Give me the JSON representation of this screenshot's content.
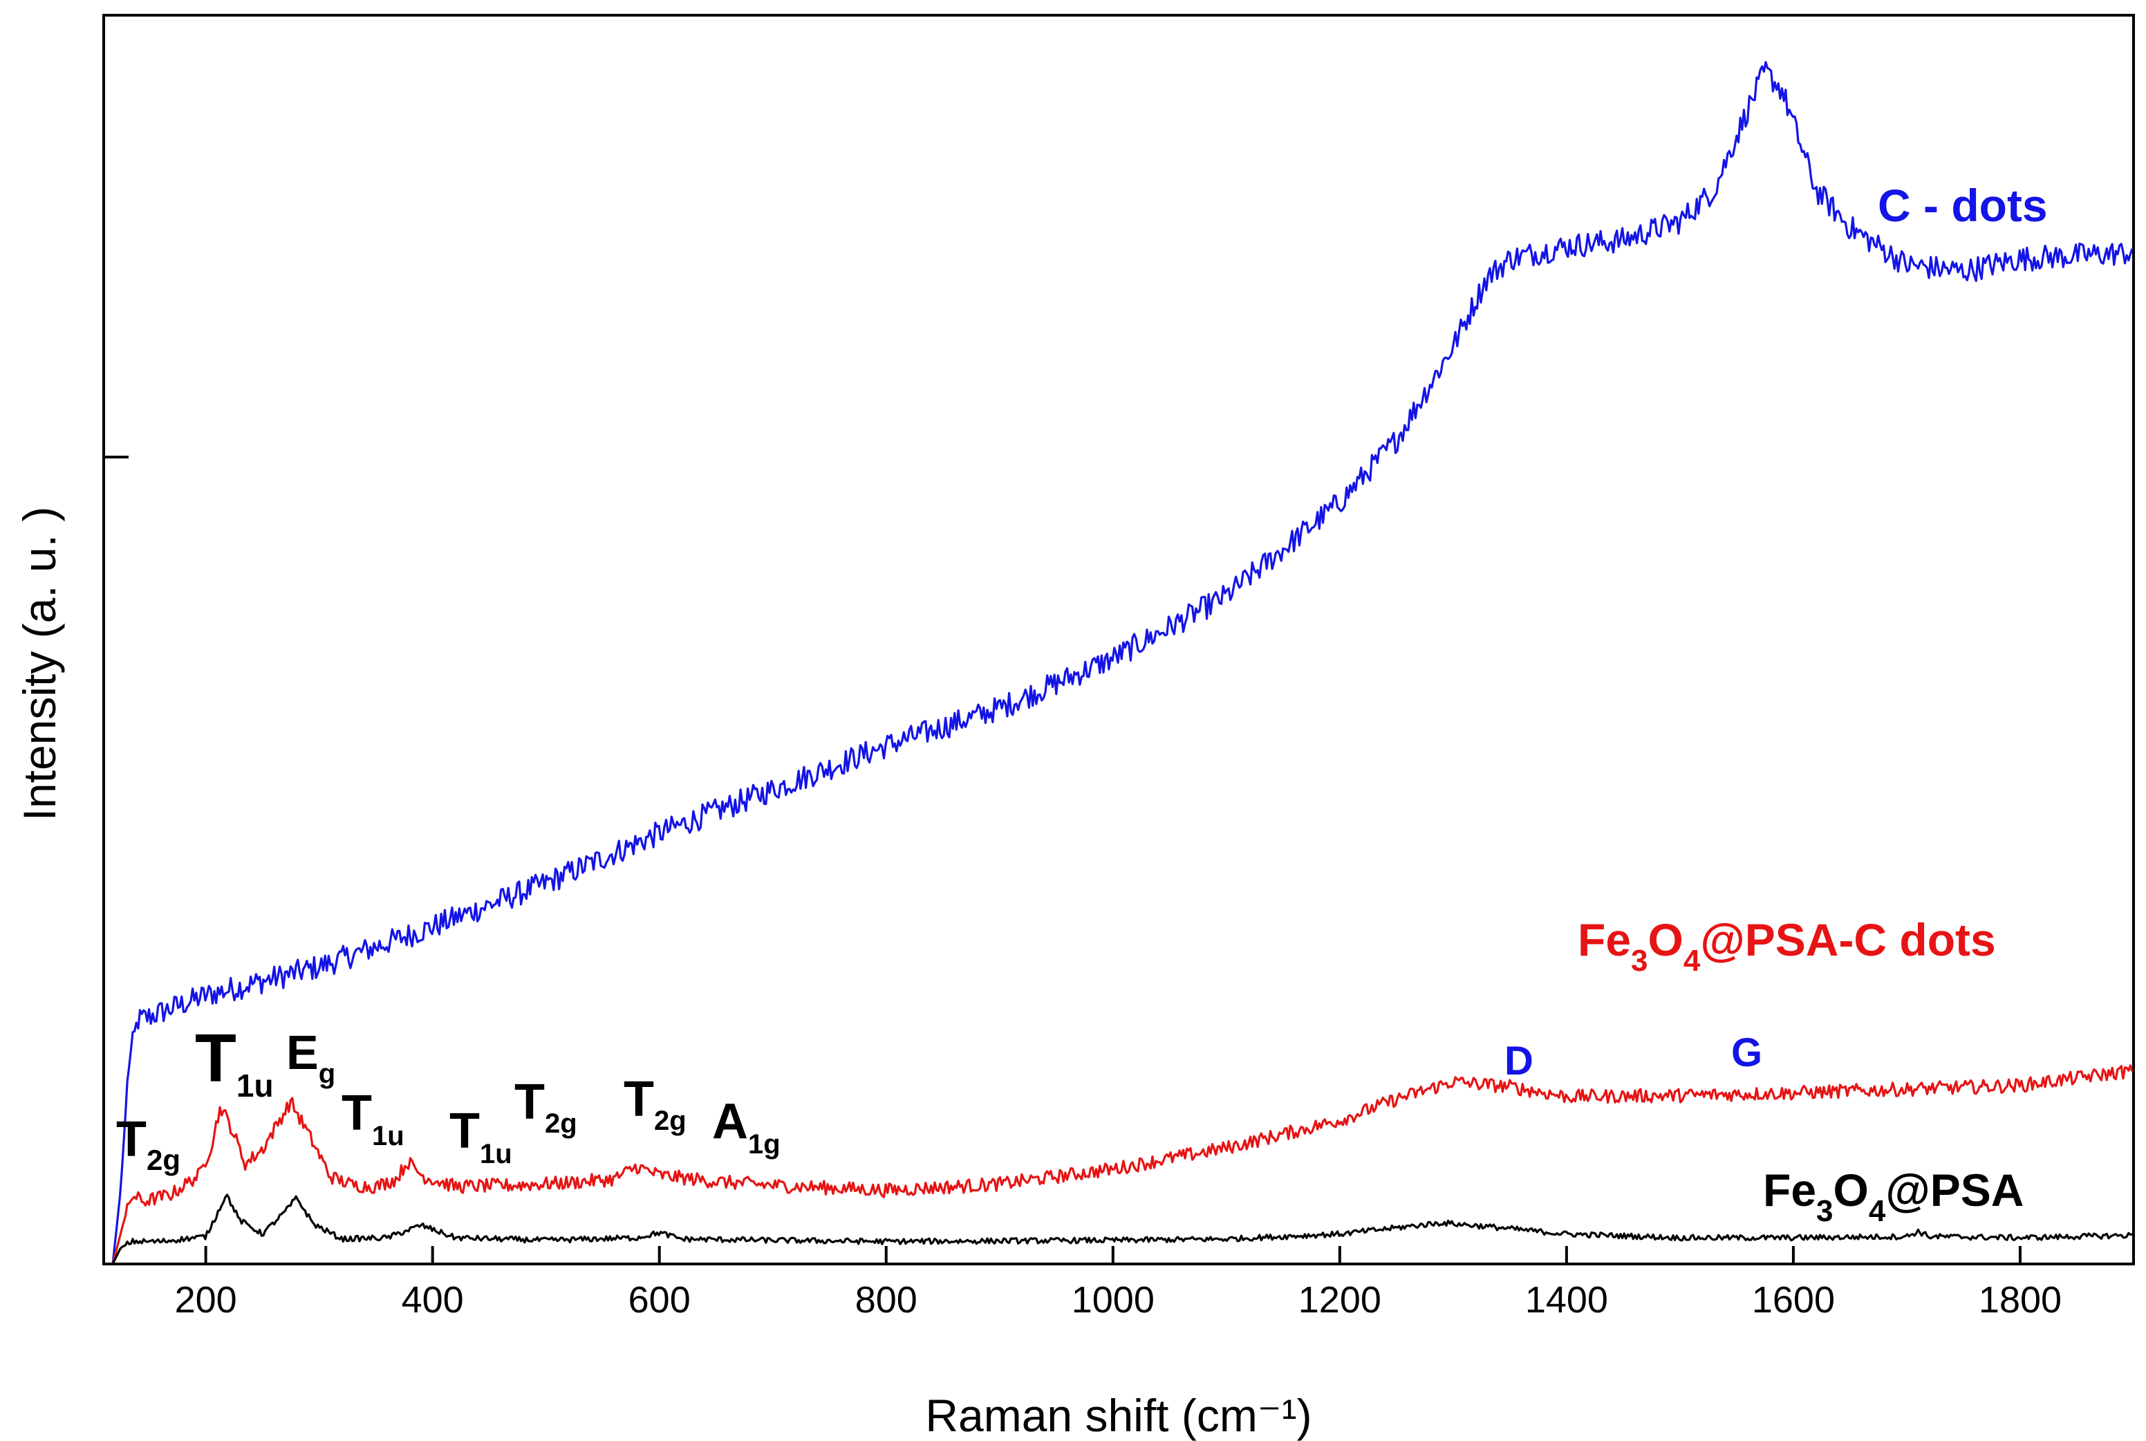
{
  "chart_data": {
    "type": "line",
    "title": "",
    "xlabel": "Raman shift (cm⁻¹)",
    "ylabel": "Intensity (a. u. )",
    "xlim": [
      110,
      1900
    ],
    "ylim": [
      0,
      100
    ],
    "x_ticks": [
      200,
      400,
      600,
      800,
      1000,
      1200,
      1400,
      1600,
      1800
    ],
    "x_tick_labels": [
      "200",
      "400",
      "600",
      "800",
      "1000",
      "1200",
      "1400",
      "1600",
      "1800"
    ],
    "grid": false,
    "series": [
      {
        "name": "C - dots",
        "color": "#1414e6",
        "points": [
          [
            118,
            0
          ],
          [
            125,
            6
          ],
          [
            132,
            16
          ],
          [
            140,
            19.5
          ],
          [
            150,
            19.8
          ],
          [
            200,
            21.5
          ],
          [
            300,
            23.8
          ],
          [
            400,
            27
          ],
          [
            500,
            30.5
          ],
          [
            600,
            34.5
          ],
          [
            700,
            38
          ],
          [
            800,
            41.5
          ],
          [
            900,
            44.5
          ],
          [
            1000,
            48.5
          ],
          [
            1100,
            53.5
          ],
          [
            1200,
            61
          ],
          [
            1250,
            66
          ],
          [
            1300,
            73.5
          ],
          [
            1330,
            79
          ],
          [
            1350,
            80.5
          ],
          [
            1400,
            81.5
          ],
          [
            1450,
            82
          ],
          [
            1500,
            83.5
          ],
          [
            1530,
            86
          ],
          [
            1560,
            92.5
          ],
          [
            1575,
            95.5
          ],
          [
            1590,
            94
          ],
          [
            1620,
            86
          ],
          [
            1650,
            83
          ],
          [
            1700,
            80
          ],
          [
            1750,
            79.5
          ],
          [
            1800,
            80.5
          ],
          [
            1900,
            81
          ]
        ],
        "noise": 1.0
      },
      {
        "name": "Fe3O4@PSA-C dots",
        "color": "#e61414",
        "points": [
          [
            118,
            0
          ],
          [
            128,
            3.5
          ],
          [
            135,
            5.5
          ],
          [
            145,
            5
          ],
          [
            170,
            5.6
          ],
          [
            195,
            7.2
          ],
          [
            205,
            9.5
          ],
          [
            213,
            12.6
          ],
          [
            222,
            11
          ],
          [
            235,
            8
          ],
          [
            250,
            9.2
          ],
          [
            265,
            11.5
          ],
          [
            275,
            13
          ],
          [
            290,
            10.5
          ],
          [
            310,
            7
          ],
          [
            330,
            6.3
          ],
          [
            350,
            6.2
          ],
          [
            368,
            6.8
          ],
          [
            378,
            8.2
          ],
          [
            392,
            7
          ],
          [
            420,
            6.2
          ],
          [
            470,
            6.3
          ],
          [
            520,
            6.5
          ],
          [
            560,
            6.8
          ],
          [
            580,
            7.8
          ],
          [
            600,
            7.1
          ],
          [
            650,
            6.6
          ],
          [
            700,
            6.3
          ],
          [
            800,
            5.9
          ],
          [
            900,
            6.4
          ],
          [
            1000,
            7.6
          ],
          [
            1100,
            9.3
          ],
          [
            1200,
            11.5
          ],
          [
            1250,
            13.2
          ],
          [
            1300,
            14.6
          ],
          [
            1350,
            14.2
          ],
          [
            1400,
            13.4
          ],
          [
            1500,
            13.5
          ],
          [
            1600,
            13.7
          ],
          [
            1700,
            14
          ],
          [
            1800,
            14.3
          ],
          [
            1900,
            15.5
          ]
        ],
        "noise": 0.55
      },
      {
        "name": "Fe3O4@PSA",
        "color": "#000000",
        "points": [
          [
            118,
            0
          ],
          [
            125,
            1.3
          ],
          [
            135,
            1.8
          ],
          [
            160,
            1.8
          ],
          [
            200,
            2.2
          ],
          [
            210,
            4
          ],
          [
            218,
            5.6
          ],
          [
            230,
            3.5
          ],
          [
            250,
            2.4
          ],
          [
            270,
            4.2
          ],
          [
            280,
            5.3
          ],
          [
            295,
            3.2
          ],
          [
            320,
            2
          ],
          [
            360,
            2.1
          ],
          [
            390,
            3.1
          ],
          [
            420,
            2.1
          ],
          [
            500,
            1.9
          ],
          [
            580,
            2.1
          ],
          [
            600,
            2.5
          ],
          [
            620,
            2
          ],
          [
            700,
            1.9
          ],
          [
            800,
            1.8
          ],
          [
            1000,
            1.9
          ],
          [
            1100,
            2
          ],
          [
            1200,
            2.4
          ],
          [
            1250,
            2.9
          ],
          [
            1290,
            3.3
          ],
          [
            1330,
            3
          ],
          [
            1400,
            2.4
          ],
          [
            1500,
            2.1
          ],
          [
            1600,
            2.1
          ],
          [
            1700,
            2.2
          ],
          [
            1710,
            2.6
          ],
          [
            1720,
            2.2
          ],
          [
            1800,
            2.1
          ],
          [
            1900,
            2.3
          ]
        ],
        "noise": 0.22
      }
    ],
    "series_labels": [
      {
        "text": "C - dots",
        "color": "#1414e6"
      },
      {
        "main": "Fe",
        "sub1": "3",
        "mid": "O",
        "sub2": "4",
        "tail": "@PSA-C dots",
        "color": "#e61414"
      },
      {
        "main": "Fe",
        "sub1": "3",
        "mid": "O",
        "sub2": "4",
        "tail": "@PSA",
        "color": "#000000"
      }
    ],
    "annotations": [
      {
        "main": "T",
        "sub": "2g"
      },
      {
        "main": "T",
        "sub": "1u"
      },
      {
        "main": "E",
        "sub": "g"
      },
      {
        "main": "T",
        "sub": "1u"
      },
      {
        "main": "T",
        "sub": "1u"
      },
      {
        "main": "T",
        "sub": "2g"
      },
      {
        "main": "T",
        "sub": "2g"
      },
      {
        "main": "A",
        "sub": "1g"
      },
      {
        "text": "D",
        "color": "#1414e6"
      },
      {
        "text": "G",
        "color": "#1414e6"
      }
    ]
  }
}
